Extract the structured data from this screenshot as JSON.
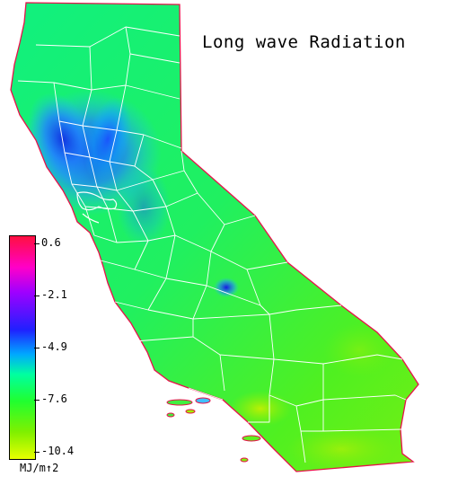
{
  "title": "Long wave Radiation",
  "legend": {
    "labels": [
      "0.6",
      "-2.1",
      "-4.9",
      "-7.6",
      "-10.4"
    ],
    "units": "MJ/m↑2"
  },
  "colors": {
    "high": "#ff1040",
    "mid_high": "#a000ff",
    "mid": "#2020ff",
    "mid_low": "#00ffa0",
    "low": "#e8ff00",
    "county_borders": "#ffffff"
  }
}
